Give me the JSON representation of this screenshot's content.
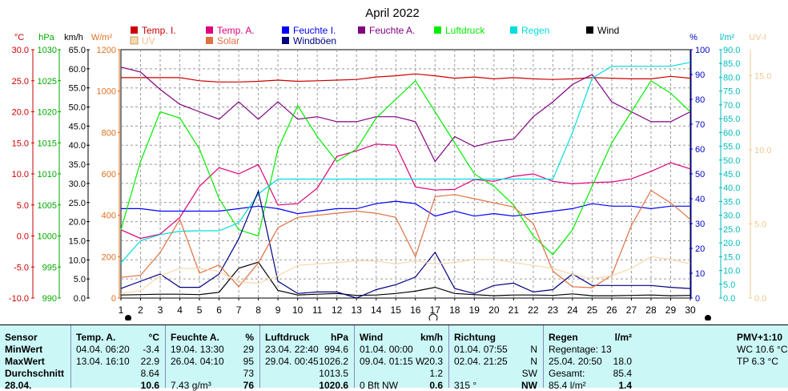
{
  "chart_data": {
    "type": "line",
    "title": "April 2022",
    "x": [
      1,
      2,
      3,
      4,
      5,
      6,
      7,
      8,
      9,
      10,
      11,
      12,
      13,
      14,
      15,
      16,
      17,
      18,
      19,
      20,
      21,
      22,
      23,
      24,
      25,
      26,
      27,
      28,
      29,
      30
    ],
    "xlim": [
      1,
      30
    ],
    "axes": {
      "temp": {
        "label": "°C",
        "color": "#cc0000",
        "range": [
          -10,
          30
        ],
        "ticks": [
          "30.0",
          "25.0",
          "20.0",
          "15.0",
          "10.0",
          "5.0",
          "0.0",
          "-5.0",
          "-10.0"
        ]
      },
      "hpa": {
        "label": "hPa",
        "color": "#00aa00",
        "range": [
          990,
          1030
        ],
        "ticks": [
          "1030",
          "1025",
          "1020",
          "1015",
          "1010",
          "1005",
          "1000",
          "995",
          "990"
        ]
      },
      "kmh": {
        "label": "km/h",
        "color": "#000000",
        "range": [
          0,
          65
        ],
        "ticks": [
          "65.0",
          "60.0",
          "55.0",
          "50.0",
          "45.0",
          "40.0",
          "35.0",
          "30.0",
          "25.0",
          "20.0",
          "15.0",
          "10.0",
          "5.0",
          "0.0"
        ]
      },
      "wm2": {
        "label": "W/m²",
        "color": "#e07020",
        "range": [
          0,
          1200
        ],
        "ticks": [
          "1200",
          "1000",
          "800",
          "600",
          "400",
          "200",
          "0"
        ]
      },
      "pct": {
        "label": "%",
        "color": "#0000cc",
        "range": [
          0,
          100
        ],
        "ticks": [
          "100",
          "90",
          "80",
          "70",
          "60",
          "50",
          "40",
          "30",
          "20",
          "10",
          "0"
        ]
      },
      "lm2": {
        "label": "l/m²",
        "color": "#00bbbb",
        "range": [
          0,
          90
        ],
        "ticks": [
          "90.0",
          "85.0",
          "80.0",
          "75.0",
          "70.0",
          "65.0",
          "60.0",
          "55.0",
          "50.0",
          "45.0",
          "40.0",
          "35.0",
          "30.0",
          "25.0",
          "20.0",
          "15.0",
          "10.0",
          "5.0",
          "0.0"
        ]
      },
      "uv": {
        "label": "UV-I",
        "color": "#f0c890",
        "range": [
          0,
          16.75
        ],
        "ticks": [
          "15.0",
          "10.0",
          "5.0",
          "0.0"
        ]
      }
    },
    "legend": [
      {
        "name": "Temp. I.",
        "color": "#cc0000"
      },
      {
        "name": "Temp. A.",
        "color": "#e0007a"
      },
      {
        "name": "Feuchte I.",
        "color": "#0000ff"
      },
      {
        "name": "Feuchte A.",
        "color": "#800080"
      },
      {
        "name": "Luftdruck",
        "color": "#00ee00"
      },
      {
        "name": "Regen",
        "color": "#00dddd"
      },
      {
        "name": "Wind",
        "color": "#000000"
      },
      {
        "name": "UV",
        "color": "#f8d8a8"
      },
      {
        "name": "Solar",
        "color": "#e07040"
      },
      {
        "name": "Windböen",
        "color": "#000080"
      }
    ],
    "series": [
      {
        "name": "Temp. I.",
        "axis": "temp",
        "color": "#cc0000",
        "values": [
          25.5,
          25.5,
          25.5,
          25.5,
          25,
          24.8,
          24.8,
          24.9,
          25.1,
          24.9,
          25,
          25.1,
          25.2,
          25.6,
          25.8,
          26.1,
          25.8,
          25.4,
          25.6,
          25.3,
          25.5,
          25.3,
          25.2,
          25.3,
          25.5,
          25.4,
          25.3,
          25.3,
          25.7,
          25.4
        ]
      },
      {
        "name": "Temp. A.",
        "axis": "temp",
        "color": "#e0007a",
        "values": [
          1,
          -0.4,
          0.3,
          3,
          8,
          11,
          10,
          11.5,
          5,
          5.2,
          7.7,
          12.8,
          13.7,
          14.8,
          14.6,
          7.9,
          7.4,
          7.5,
          9.1,
          8.8,
          9.6,
          10,
          8.8,
          8.4,
          8.6,
          8.7,
          9.2,
          10.4,
          11.8,
          10.8
        ]
      },
      {
        "name": "Feuchte I.",
        "axis": "pct",
        "color": "#0000ff",
        "values": [
          36,
          36,
          35,
          35,
          35,
          35,
          36,
          37,
          36,
          34,
          35,
          36,
          36,
          38,
          39,
          38,
          33,
          35,
          33,
          34,
          33,
          34,
          35,
          36,
          38,
          37,
          37,
          36,
          37,
          37
        ]
      },
      {
        "name": "Feuchte A.",
        "axis": "pct",
        "color": "#800080",
        "values": [
          93,
          91,
          84,
          78,
          75,
          72,
          79,
          72,
          79,
          72,
          73,
          71,
          71,
          73,
          73,
          71,
          55,
          65,
          61,
          63,
          64,
          73,
          79,
          86,
          90,
          79,
          75,
          71,
          71,
          75
        ]
      },
      {
        "name": "Luftdruck",
        "axis": "hpa",
        "color": "#00ee00",
        "values": [
          1001,
          1012,
          1020,
          1019,
          1014,
          1006,
          1001,
          1000,
          1014,
          1021,
          1016,
          1012,
          1014,
          1019,
          1022,
          1025,
          1020,
          1015,
          1010,
          1008,
          1005,
          1000,
          997,
          1001,
          1008,
          1015,
          1020,
          1025,
          1023,
          1020
        ]
      },
      {
        "name": "Regen",
        "axis": "lm2",
        "color": "#00dddd",
        "values": [
          12.7,
          20.8,
          23,
          24.2,
          24.4,
          24.4,
          27.3,
          37.7,
          43.1,
          43.1,
          43.1,
          43.1,
          43.1,
          43.1,
          43.1,
          43.1,
          43.1,
          43.1,
          43.1,
          43.1,
          43.1,
          43.1,
          43.1,
          60,
          79.7,
          84,
          84,
          84,
          84,
          85.4
        ]
      },
      {
        "name": "Wind",
        "axis": "kmh",
        "color": "#000000",
        "values": [
          0.8,
          0.9,
          1,
          1,
          0.9,
          1.5,
          7.8,
          9.4,
          2,
          0.8,
          1,
          1.2,
          0.7,
          0.8,
          1.2,
          1.8,
          2.8,
          1.2,
          0.9,
          0.6,
          0.8,
          0.8,
          0.7,
          1.1,
          0.6,
          0.6,
          0.7,
          0.8,
          0.6,
          0.7
        ]
      },
      {
        "name": "Windböen",
        "axis": "kmh",
        "color": "#000080",
        "values": [
          2.5,
          4.4,
          6.3,
          2.8,
          2.8,
          6.3,
          15.5,
          28,
          4.4,
          1.2,
          1.6,
          1.6,
          0,
          2.2,
          3.5,
          5.5,
          12,
          2.5,
          1.2,
          3.3,
          3.9,
          1.6,
          2.2,
          6.3,
          3.3,
          3.3,
          3.3,
          3.3,
          2.8,
          2.5
        ]
      },
      {
        "name": "Solar",
        "axis": "wm2",
        "color": "#e07040",
        "values": [
          100,
          110,
          220,
          380,
          120,
          160,
          55,
          170,
          340,
          390,
          400,
          410,
          420,
          410,
          390,
          200,
          490,
          500,
          480,
          460,
          440,
          360,
          130,
          55,
          50,
          110,
          350,
          520,
          460,
          380
        ]
      },
      {
        "name": "UV",
        "axis": "uv",
        "color": "#f8d8a8",
        "values": [
          0.3,
          0.5,
          1.5,
          2,
          2,
          1.8,
          1.1,
          1,
          1.5,
          2.2,
          2.3,
          2.4,
          2.5,
          2.5,
          2.3,
          2.5,
          2.3,
          2.4,
          2.6,
          2.6,
          2.4,
          2.2,
          2,
          1.6,
          1.3,
          1.5,
          2,
          2.8,
          2.6,
          2.3
        ]
      }
    ],
    "grid": true
  },
  "stats": {
    "sensor": {
      "header": "Sensor",
      "rows": [
        "MinWert",
        "MaxWert",
        "Durchschnitt",
        "28.04."
      ]
    },
    "temp": {
      "header": "Temp. A.",
      "unit": "°C",
      "rows": [
        {
          "date": "04.04.  06:20",
          "val": "-3.4"
        },
        {
          "date": "13.04.  16:10",
          "val": "22.9"
        },
        {
          "date": "",
          "val": "8.64"
        },
        {
          "date": "",
          "val": "10.6"
        }
      ]
    },
    "hum": {
      "header": "Feuchte A.",
      "unit": "%",
      "rows": [
        {
          "date": "19.04.  13:30",
          "val": "29"
        },
        {
          "date": "26.04.  04:10",
          "val": "95"
        },
        {
          "date": "",
          "val": "73"
        },
        {
          "date": "7.43 g/m³",
          "val": "76"
        }
      ]
    },
    "press": {
      "header": "Luftdruck",
      "unit": "hPa",
      "rows": [
        {
          "date": "23.04.  22:40",
          "val": "994.6"
        },
        {
          "date": "29.04.  00:45",
          "val": "1026.2"
        },
        {
          "date": "",
          "val": "1013.5"
        },
        {
          "date": "",
          "val": "1020.6"
        }
      ]
    },
    "wind": {
      "header": "Wind",
      "unit": "km/h",
      "rows": [
        {
          "date": "01.04.  00:00",
          "val": "0.0"
        },
        {
          "date": "09.04.  01:15  W",
          "val": "20.3"
        },
        {
          "date": "",
          "val": "1.2"
        },
        {
          "date": "0 Bft NW",
          "val": "0.6"
        }
      ]
    },
    "dir": {
      "header": "Richtung",
      "rows": [
        {
          "date": "01.04.  07:55",
          "val": "N"
        },
        {
          "date": "02.04.  21:25",
          "val": "N"
        },
        {
          "date": "",
          "val": "SW"
        },
        {
          "date": "315 °",
          "val": "NW"
        }
      ]
    },
    "rain": {
      "header": "Regen",
      "unit": "l/m²",
      "rows": [
        {
          "date": "Regentage: 13",
          "val": ""
        },
        {
          "date": "25.04.  20:50",
          "val": "18.0"
        },
        {
          "date": "Gesamt:",
          "val": "85.4"
        },
        {
          "date": "85.4 l/m²",
          "val": "1.4"
        }
      ]
    },
    "pmv": {
      "header": "PMV+1:10",
      "rows": [
        "WC 10.6 °C",
        "TP 6.3 °C"
      ]
    }
  }
}
